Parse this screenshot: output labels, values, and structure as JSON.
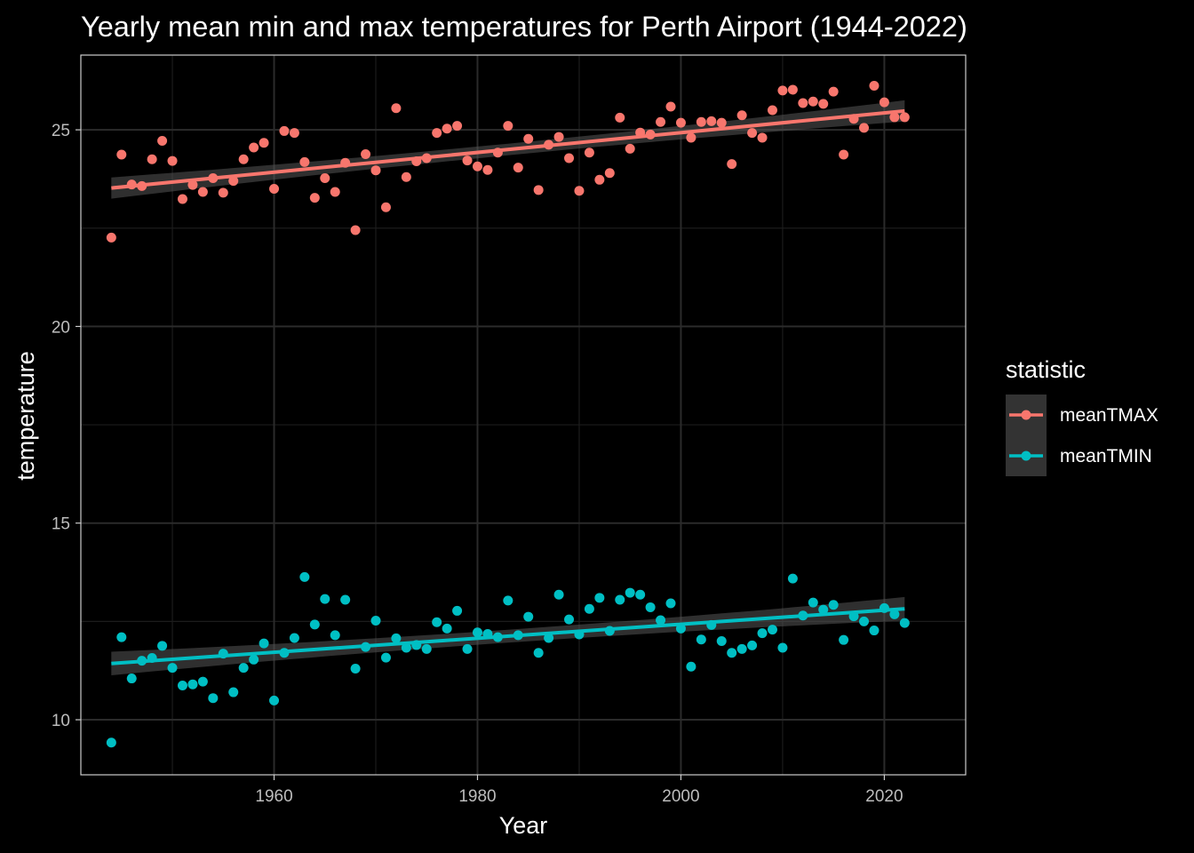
{
  "chart_data": {
    "type": "scatter",
    "title": "Yearly mean min and max temperatures for Perth Airport (1944-2022)",
    "xlabel": "Year",
    "ylabel": "temperature",
    "xlim": [
      1941,
      2028
    ],
    "ylim": [
      8.6,
      26.9
    ],
    "x_ticks": [
      1960,
      1980,
      2000,
      2020
    ],
    "y_ticks": [
      10,
      15,
      20,
      25
    ],
    "grid": true,
    "legend": {
      "title": "statistic",
      "placement": "right"
    },
    "series": [
      {
        "name": "meanTMAX",
        "color": "#F8766D",
        "trend": {
          "x": [
            1944,
            2022
          ],
          "y": [
            23.52,
            25.48
          ],
          "se": 0.27
        },
        "points": [
          [
            1944,
            22.26
          ],
          [
            1945,
            24.37
          ],
          [
            1946,
            23.61
          ],
          [
            1947,
            23.57
          ],
          [
            1948,
            24.25
          ],
          [
            1949,
            24.72
          ],
          [
            1950,
            24.21
          ],
          [
            1951,
            23.24
          ],
          [
            1952,
            23.6
          ],
          [
            1953,
            23.42
          ],
          [
            1954,
            23.77
          ],
          [
            1955,
            23.4
          ],
          [
            1956,
            23.7
          ],
          [
            1957,
            24.25
          ],
          [
            1958,
            24.55
          ],
          [
            1959,
            24.67
          ],
          [
            1960,
            23.5
          ],
          [
            1961,
            24.97
          ],
          [
            1962,
            24.92
          ],
          [
            1963,
            24.18
          ],
          [
            1964,
            23.27
          ],
          [
            1965,
            23.77
          ],
          [
            1966,
            23.42
          ],
          [
            1967,
            24.16
          ],
          [
            1968,
            22.45
          ],
          [
            1969,
            24.38
          ],
          [
            1970,
            23.97
          ],
          [
            1971,
            23.03
          ],
          [
            1972,
            25.55
          ],
          [
            1973,
            23.8
          ],
          [
            1974,
            24.2
          ],
          [
            1975,
            24.28
          ],
          [
            1976,
            24.92
          ],
          [
            1977,
            25.03
          ],
          [
            1978,
            25.1
          ],
          [
            1979,
            24.22
          ],
          [
            1980,
            24.07
          ],
          [
            1981,
            23.98
          ],
          [
            1982,
            24.42
          ],
          [
            1983,
            25.1
          ],
          [
            1984,
            24.04
          ],
          [
            1985,
            24.77
          ],
          [
            1986,
            23.47
          ],
          [
            1987,
            24.62
          ],
          [
            1988,
            24.82
          ],
          [
            1989,
            24.28
          ],
          [
            1990,
            23.45
          ],
          [
            1991,
            24.42
          ],
          [
            1992,
            23.73
          ],
          [
            1993,
            23.9
          ],
          [
            1994,
            25.31
          ],
          [
            1995,
            24.52
          ],
          [
            1996,
            24.93
          ],
          [
            1997,
            24.88
          ],
          [
            1998,
            25.2
          ],
          [
            1999,
            25.59
          ],
          [
            2000,
            25.18
          ],
          [
            2001,
            24.8
          ],
          [
            2002,
            25.2
          ],
          [
            2003,
            25.22
          ],
          [
            2004,
            25.18
          ],
          [
            2005,
            24.13
          ],
          [
            2006,
            25.37
          ],
          [
            2007,
            24.92
          ],
          [
            2008,
            24.8
          ],
          [
            2009,
            25.5
          ],
          [
            2010,
            26.0
          ],
          [
            2011,
            26.02
          ],
          [
            2012,
            25.68
          ],
          [
            2013,
            25.72
          ],
          [
            2014,
            25.66
          ],
          [
            2015,
            25.97
          ],
          [
            2016,
            24.37
          ],
          [
            2017,
            25.28
          ],
          [
            2018,
            25.05
          ],
          [
            2019,
            26.12
          ],
          [
            2020,
            25.7
          ],
          [
            2021,
            25.32
          ],
          [
            2022,
            25.32
          ]
        ]
      },
      {
        "name": "meanTMIN",
        "color": "#00BFC4",
        "trend": {
          "x": [
            1944,
            2022
          ],
          "y": [
            11.43,
            12.82
          ],
          "se": 0.3
        },
        "points": [
          [
            1944,
            9.42
          ],
          [
            1945,
            12.1
          ],
          [
            1946,
            11.05
          ],
          [
            1947,
            11.5
          ],
          [
            1948,
            11.57
          ],
          [
            1949,
            11.88
          ],
          [
            1950,
            11.32
          ],
          [
            1951,
            10.87
          ],
          [
            1952,
            10.9
          ],
          [
            1953,
            10.97
          ],
          [
            1954,
            10.55
          ],
          [
            1955,
            11.68
          ],
          [
            1956,
            10.7
          ],
          [
            1957,
            11.32
          ],
          [
            1958,
            11.53
          ],
          [
            1959,
            11.94
          ],
          [
            1960,
            10.49
          ],
          [
            1961,
            11.7
          ],
          [
            1962,
            12.08
          ],
          [
            1963,
            13.63
          ],
          [
            1964,
            12.42
          ],
          [
            1965,
            13.07
          ],
          [
            1966,
            12.15
          ],
          [
            1967,
            13.05
          ],
          [
            1968,
            11.3
          ],
          [
            1969,
            11.85
          ],
          [
            1970,
            12.52
          ],
          [
            1971,
            11.58
          ],
          [
            1972,
            12.07
          ],
          [
            1973,
            11.83
          ],
          [
            1974,
            11.9
          ],
          [
            1975,
            11.8
          ],
          [
            1976,
            12.48
          ],
          [
            1977,
            12.32
          ],
          [
            1978,
            12.77
          ],
          [
            1979,
            11.8
          ],
          [
            1980,
            12.22
          ],
          [
            1981,
            12.18
          ],
          [
            1982,
            12.1
          ],
          [
            1983,
            13.03
          ],
          [
            1984,
            12.15
          ],
          [
            1985,
            12.62
          ],
          [
            1986,
            11.7
          ],
          [
            1987,
            12.08
          ],
          [
            1988,
            13.18
          ],
          [
            1989,
            12.55
          ],
          [
            1990,
            12.17
          ],
          [
            1991,
            12.82
          ],
          [
            1992,
            13.1
          ],
          [
            1993,
            12.26
          ],
          [
            1994,
            13.05
          ],
          [
            1995,
            13.23
          ],
          [
            1996,
            13.18
          ],
          [
            1997,
            12.86
          ],
          [
            1998,
            12.53
          ],
          [
            1999,
            12.96
          ],
          [
            2000,
            12.32
          ],
          [
            2001,
            11.35
          ],
          [
            2002,
            12.04
          ],
          [
            2003,
            12.41
          ],
          [
            2004,
            12.0
          ],
          [
            2005,
            11.7
          ],
          [
            2006,
            11.8
          ],
          [
            2007,
            11.89
          ],
          [
            2008,
            12.2
          ],
          [
            2009,
            12.29
          ],
          [
            2010,
            11.83
          ],
          [
            2011,
            13.59
          ],
          [
            2012,
            12.65
          ],
          [
            2013,
            12.98
          ],
          [
            2014,
            12.8
          ],
          [
            2015,
            12.92
          ],
          [
            2016,
            12.03
          ],
          [
            2017,
            12.63
          ],
          [
            2018,
            12.5
          ],
          [
            2019,
            12.27
          ],
          [
            2020,
            12.84
          ],
          [
            2021,
            12.68
          ],
          [
            2022,
            12.46
          ]
        ]
      }
    ]
  }
}
